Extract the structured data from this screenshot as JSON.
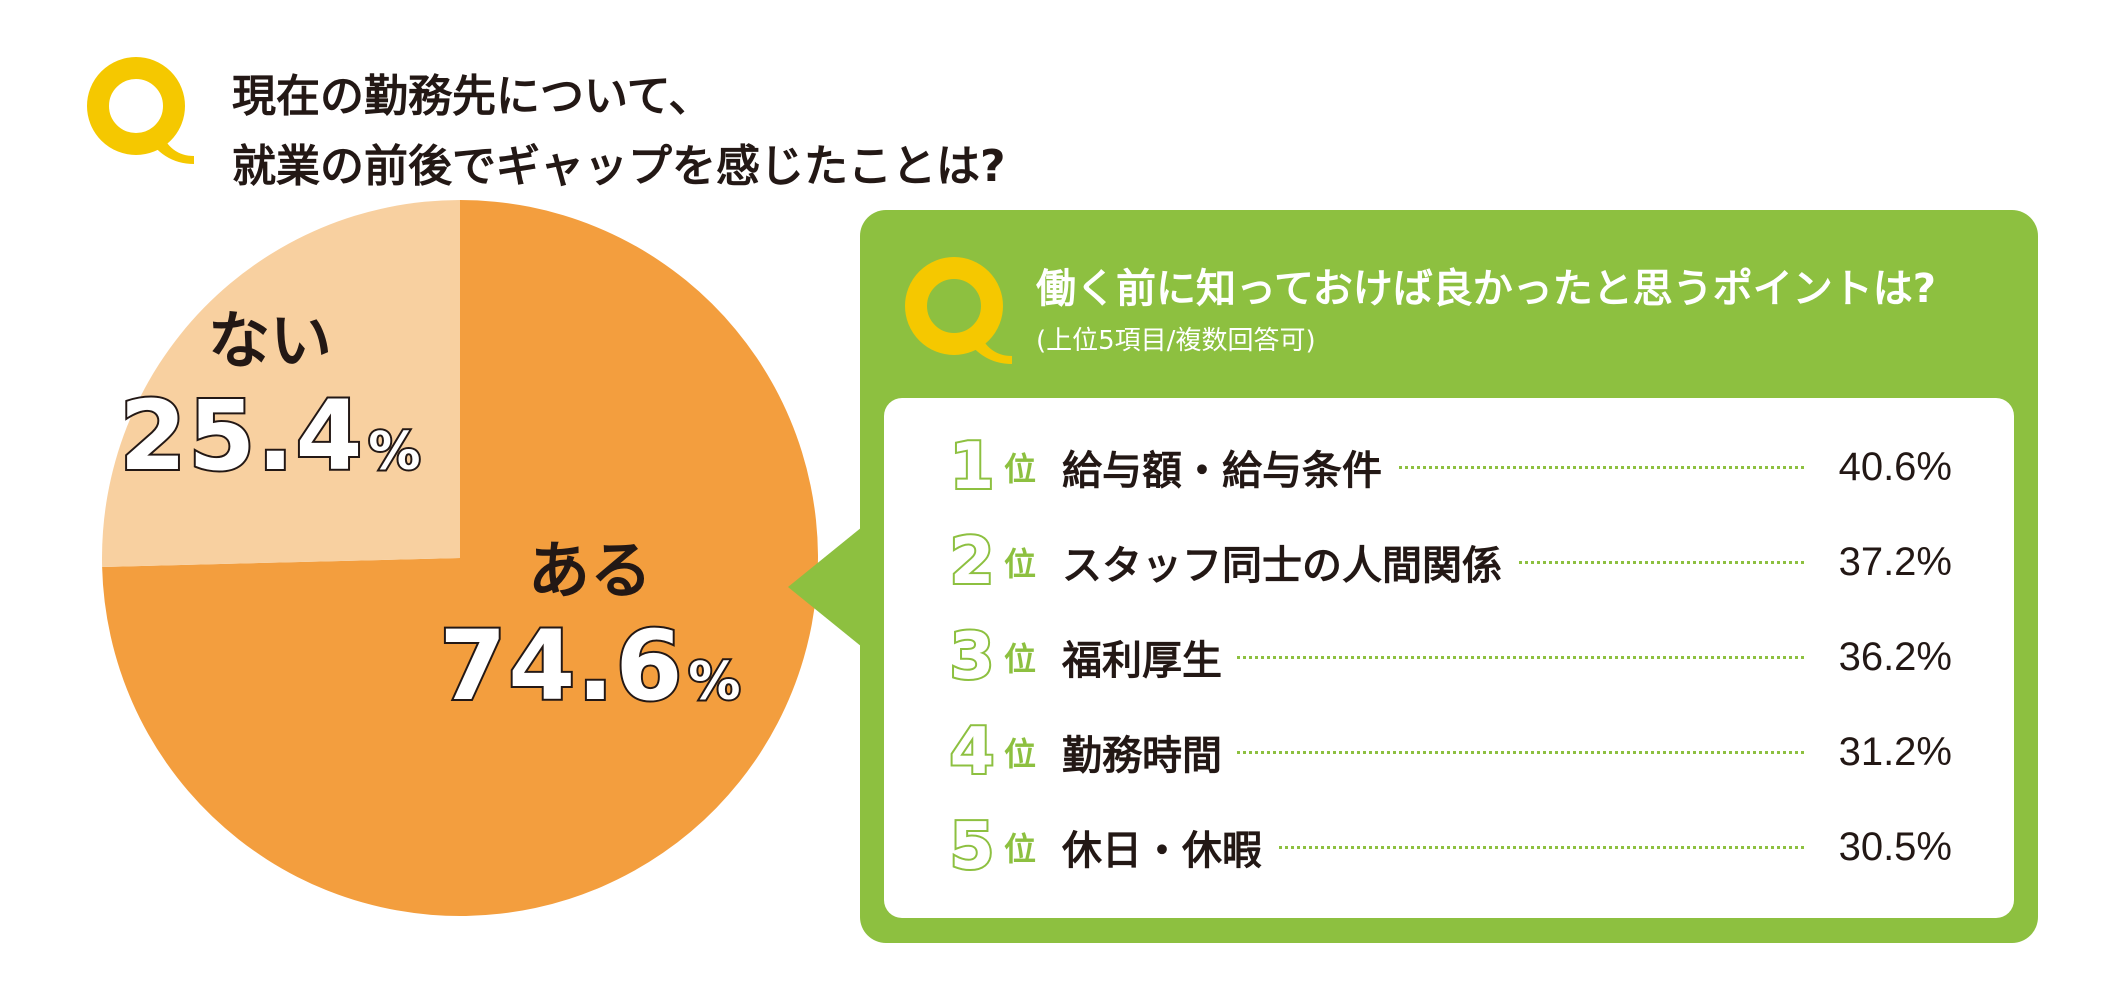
{
  "question": {
    "line1": "現在の勤務先について、",
    "line2": "就業の前後でギャップを感じたことは?"
  },
  "chart_data": [
    {
      "type": "pie",
      "slices": [
        {
          "label": "ある",
          "value": 74.6,
          "value_text": "74.6",
          "unit": "%",
          "color": "#f39e3e"
        },
        {
          "label": "ない",
          "value": 25.4,
          "value_text": "25.4",
          "unit": "%",
          "color": "#f8d0a0"
        }
      ]
    },
    {
      "type": "bar",
      "title": "働く前に知っておけば良かったと思うポイントは?",
      "subtitle": "(上位5項目/複数回答可)",
      "items": [
        {
          "rank": "1",
          "rank_unit": "位",
          "label": "給与額・給与条件",
          "value": 40.6,
          "value_text": "40.6%"
        },
        {
          "rank": "2",
          "rank_unit": "位",
          "label": "スタッフ同士の人間関係",
          "value": 37.2,
          "value_text": "37.2%"
        },
        {
          "rank": "3",
          "rank_unit": "位",
          "label": "福利厚生",
          "value": 36.2,
          "value_text": "36.2%"
        },
        {
          "rank": "4",
          "rank_unit": "位",
          "label": "勤務時間",
          "value": 31.2,
          "value_text": "31.2%"
        },
        {
          "rank": "5",
          "rank_unit": "位",
          "label": "休日・休暇",
          "value": 30.5,
          "value_text": "30.5%"
        }
      ]
    }
  ],
  "colors": {
    "q_icon": "#f5c800",
    "panel": "#8dc040",
    "text": "#231815",
    "pie_main": "#f39e3e",
    "pie_minor": "#f8d0a0"
  },
  "icons": {
    "main_q": "q-letter-icon",
    "sub_q": "q-letter-icon"
  }
}
